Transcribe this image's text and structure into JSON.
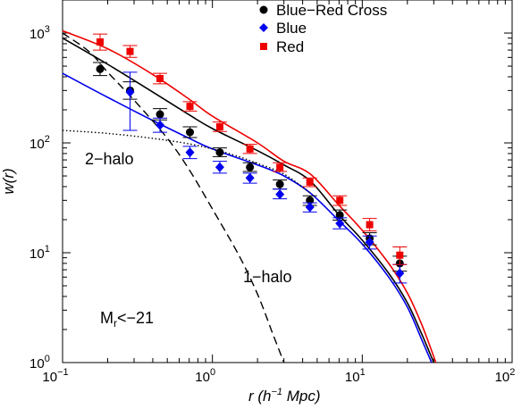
{
  "chart_data": {
    "type": "scatter",
    "xlabel": {
      "main": "r (h",
      "sup": "−1",
      "tail": " Mpc)"
    },
    "ylabel": "w(r)",
    "xscale": "log",
    "yscale": "log",
    "xlim": [
      0.1,
      100
    ],
    "ylim": [
      1,
      2000
    ],
    "x_ticks": [
      {
        "value": 0.1,
        "base": "10",
        "exp": "−1"
      },
      {
        "value": 1,
        "base": "10",
        "exp": "0"
      },
      {
        "value": 10,
        "base": "10",
        "exp": "1"
      },
      {
        "value": 100,
        "base": "10",
        "exp": "2"
      }
    ],
    "y_ticks": [
      {
        "value": 1,
        "base": "10",
        "exp": "0"
      },
      {
        "value": 10,
        "base": "10",
        "exp": "1"
      },
      {
        "value": 100,
        "base": "10",
        "exp": "2"
      },
      {
        "value": 1000,
        "base": "10",
        "exp": "3"
      }
    ],
    "legend": {
      "placement": "top-right"
    },
    "series": [
      {
        "name": "Blue−Red Cross",
        "marker": "circle",
        "color": "#000000",
        "points": [
          {
            "x": 0.178,
            "y": 470,
            "lo": 410,
            "hi": 540
          },
          {
            "x": 0.282,
            "y": 300,
            "lo": 250,
            "hi": 360
          },
          {
            "x": 0.447,
            "y": 182,
            "lo": 162,
            "hi": 205
          },
          {
            "x": 0.708,
            "y": 125,
            "lo": 112,
            "hi": 140
          },
          {
            "x": 1.12,
            "y": 82,
            "lo": 75,
            "hi": 90
          },
          {
            "x": 1.78,
            "y": 60,
            "lo": 55,
            "hi": 66
          },
          {
            "x": 2.82,
            "y": 42,
            "lo": 38,
            "hi": 46
          },
          {
            "x": 4.47,
            "y": 30,
            "lo": 27,
            "hi": 33
          },
          {
            "x": 7.08,
            "y": 22,
            "lo": 19.8,
            "hi": 24.5
          },
          {
            "x": 11.2,
            "y": 13.5,
            "lo": 11.8,
            "hi": 15.2
          },
          {
            "x": 17.8,
            "y": 8,
            "lo": 6.8,
            "hi": 9.3
          }
        ]
      },
      {
        "name": "Blue",
        "marker": "diamond",
        "color": "#0000ee",
        "points": [
          {
            "x": 0.282,
            "y": 290,
            "lo": 130,
            "hi": 440
          },
          {
            "x": 0.447,
            "y": 145,
            "lo": 125,
            "hi": 168
          },
          {
            "x": 0.708,
            "y": 82,
            "lo": 72,
            "hi": 93
          },
          {
            "x": 1.12,
            "y": 60,
            "lo": 53,
            "hi": 68
          },
          {
            "x": 1.78,
            "y": 48,
            "lo": 43,
            "hi": 53
          },
          {
            "x": 2.82,
            "y": 34,
            "lo": 31,
            "hi": 38
          },
          {
            "x": 4.47,
            "y": 26,
            "lo": 23.5,
            "hi": 28.5
          },
          {
            "x": 7.08,
            "y": 18.5,
            "lo": 16.5,
            "hi": 20.8
          },
          {
            "x": 11.2,
            "y": 12.5,
            "lo": 10.8,
            "hi": 14.2
          },
          {
            "x": 17.8,
            "y": 6.5,
            "lo": 5.3,
            "hi": 7.8
          }
        ]
      },
      {
        "name": "Red",
        "marker": "square",
        "color": "#ee0000",
        "points": [
          {
            "x": 0.178,
            "y": 830,
            "lo": 700,
            "hi": 980
          },
          {
            "x": 0.282,
            "y": 680,
            "lo": 600,
            "hi": 770
          },
          {
            "x": 0.447,
            "y": 385,
            "lo": 345,
            "hi": 430
          },
          {
            "x": 0.708,
            "y": 215,
            "lo": 195,
            "hi": 237
          },
          {
            "x": 1.12,
            "y": 140,
            "lo": 127,
            "hi": 155
          },
          {
            "x": 1.78,
            "y": 88,
            "lo": 80,
            "hi": 97
          },
          {
            "x": 2.82,
            "y": 60,
            "lo": 55,
            "hi": 66
          },
          {
            "x": 4.47,
            "y": 44,
            "lo": 40,
            "hi": 48
          },
          {
            "x": 7.08,
            "y": 30,
            "lo": 27,
            "hi": 33
          },
          {
            "x": 11.2,
            "y": 18,
            "lo": 15.8,
            "hi": 20.5
          },
          {
            "x": 17.8,
            "y": 9.5,
            "lo": 7.8,
            "hi": 11.3
          }
        ]
      }
    ],
    "model_curves": [
      {
        "id": "cross-model",
        "color": "#000000",
        "style": "solid",
        "points": [
          [
            0.1,
            900
          ],
          [
            0.2,
            520
          ],
          [
            0.4,
            290
          ],
          [
            0.7,
            180
          ],
          [
            1.0,
            135
          ],
          [
            2.0,
            85
          ],
          [
            3.0,
            63
          ],
          [
            4.5,
            45
          ],
          [
            7.0,
            22
          ],
          [
            10.0,
            13
          ],
          [
            15.0,
            6.5
          ],
          [
            20.0,
            3.5
          ],
          [
            25.0,
            1.8
          ],
          [
            30.0,
            1.0
          ]
        ]
      },
      {
        "id": "blue-model",
        "color": "#0000ee",
        "style": "solid",
        "points": [
          [
            0.1,
            430
          ],
          [
            0.2,
            260
          ],
          [
            0.4,
            160
          ],
          [
            0.7,
            110
          ],
          [
            1.0,
            88
          ],
          [
            2.0,
            63
          ],
          [
            3.0,
            50
          ],
          [
            4.5,
            35
          ],
          [
            7.0,
            19.5
          ],
          [
            10.0,
            12
          ],
          [
            15.0,
            6
          ],
          [
            20.0,
            3.2
          ],
          [
            25.0,
            1.6
          ],
          [
            29.0,
            1.0
          ]
        ]
      },
      {
        "id": "red-model",
        "color": "#ee0000",
        "style": "solid",
        "points": [
          [
            0.1,
            1050
          ],
          [
            0.2,
            720
          ],
          [
            0.4,
            420
          ],
          [
            0.7,
            250
          ],
          [
            1.0,
            175
          ],
          [
            2.0,
            100
          ],
          [
            3.0,
            68
          ],
          [
            4.5,
            52
          ],
          [
            7.0,
            27
          ],
          [
            10.0,
            16
          ],
          [
            15.0,
            8
          ],
          [
            20.0,
            4.3
          ],
          [
            25.0,
            2.2
          ],
          [
            31.0,
            1.0
          ]
        ]
      },
      {
        "id": "one-halo-term",
        "color": "#000000",
        "style": "dashed",
        "points": [
          [
            0.1,
            1000
          ],
          [
            0.15,
            680
          ],
          [
            0.2,
            440
          ],
          [
            0.3,
            245
          ],
          [
            0.5,
            110
          ],
          [
            0.7,
            57
          ],
          [
            1.0,
            25
          ],
          [
            1.5,
            9.5
          ],
          [
            2.0,
            4.2
          ],
          [
            2.5,
            1.9
          ],
          [
            3.0,
            1.0
          ]
        ]
      },
      {
        "id": "two-halo-term",
        "color": "#000000",
        "style": "dotted",
        "points": [
          [
            0.1,
            130
          ],
          [
            0.2,
            122
          ],
          [
            0.4,
            110
          ],
          [
            0.7,
            98
          ],
          [
            1.0,
            88
          ],
          [
            1.5,
            75
          ],
          [
            2.0,
            65
          ],
          [
            3.0,
            52
          ],
          [
            4.5,
            35
          ]
        ]
      }
    ],
    "annotations": {
      "one_halo": "1−halo",
      "two_halo": "2−halo",
      "magnitude": {
        "main": "M",
        "sub": "r",
        "tail": "<−21"
      }
    }
  }
}
